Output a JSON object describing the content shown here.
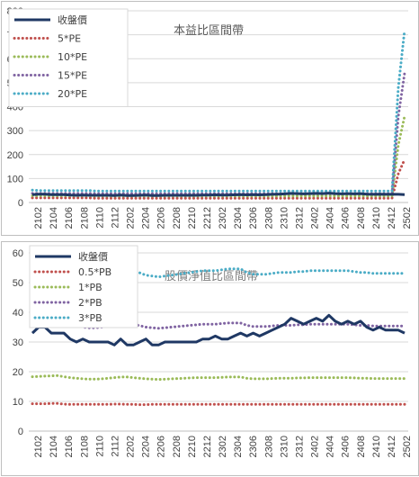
{
  "chart_data": [
    {
      "type": "line",
      "title": "本益比區間帶",
      "title_color": "#595959",
      "ylim": [
        0,
        800
      ],
      "yticks": [
        0,
        100,
        200,
        300,
        400,
        500,
        600,
        700,
        800
      ],
      "grid": true,
      "legend_position": "top-left",
      "x_tick_labels": [
        "2102",
        "2104",
        "2106",
        "2108",
        "2110",
        "2112",
        "2202",
        "2204",
        "2206",
        "2208",
        "2210",
        "2212",
        "2302",
        "2304",
        "2306",
        "2308",
        "2310",
        "2312",
        "2402",
        "2404",
        "2406",
        "2408",
        "2410",
        "2412",
        "2502"
      ],
      "series": [
        {
          "name": "收盤價",
          "color": "#1f3864",
          "style": "solid",
          "values": [
            33,
            35,
            35,
            33,
            33,
            33,
            31,
            30,
            31,
            30,
            30,
            30,
            30,
            29,
            31,
            29,
            29,
            30,
            31,
            29,
            29,
            30,
            30,
            30,
            30,
            30,
            30,
            31,
            31,
            32,
            31,
            31,
            32,
            33,
            32,
            33,
            32,
            33,
            34,
            35,
            36,
            38,
            37,
            36,
            37,
            38,
            37,
            39,
            37,
            36,
            37,
            36,
            37,
            35,
            34,
            35,
            34,
            34,
            34,
            33
          ]
        },
        {
          "name": "5*PE",
          "color": "#c0504d",
          "style": "dotted",
          "values": [
            19,
            19,
            19,
            19,
            19,
            19,
            19,
            19,
            19,
            19,
            18,
            18,
            18,
            18,
            18,
            18,
            18,
            18,
            18,
            18,
            18,
            18,
            18,
            18,
            18,
            18,
            18,
            18,
            18,
            18,
            18,
            18,
            18,
            18,
            18,
            18,
            18,
            18,
            18,
            18,
            18,
            18,
            18,
            18,
            18,
            18,
            18,
            18,
            18,
            18,
            18,
            18,
            18,
            18,
            18,
            18,
            18,
            18,
            120,
            180
          ]
        },
        {
          "name": "10*PE",
          "color": "#9bbb59",
          "style": "dotted",
          "values": [
            28,
            28,
            28,
            28,
            28,
            28,
            28,
            28,
            28,
            28,
            27,
            27,
            27,
            27,
            27,
            27,
            27,
            27,
            27,
            27,
            27,
            27,
            27,
            27,
            27,
            27,
            27,
            27,
            27,
            27,
            27,
            27,
            27,
            27,
            27,
            27,
            27,
            27,
            27,
            27,
            27,
            27,
            27,
            27,
            27,
            27,
            27,
            27,
            27,
            27,
            27,
            27,
            27,
            27,
            27,
            27,
            27,
            27,
            240,
            360
          ]
        },
        {
          "name": "15*PE",
          "color": "#8064a2",
          "style": "dotted",
          "values": [
            38,
            38,
            38,
            38,
            38,
            38,
            38,
            38,
            38,
            38,
            37,
            37,
            37,
            37,
            37,
            37,
            37,
            37,
            37,
            37,
            37,
            37,
            37,
            37,
            37,
            37,
            37,
            37,
            37,
            37,
            37,
            37,
            37,
            37,
            37,
            37,
            37,
            37,
            37,
            37,
            37,
            37,
            37,
            37,
            37,
            37,
            37,
            37,
            37,
            37,
            37,
            37,
            37,
            37,
            37,
            37,
            37,
            37,
            360,
            540
          ]
        },
        {
          "name": "20*PE",
          "color": "#4bacc6",
          "style": "dotted",
          "values": [
            52,
            50,
            50,
            50,
            50,
            50,
            50,
            50,
            50,
            50,
            48,
            48,
            48,
            48,
            48,
            48,
            48,
            48,
            48,
            48,
            48,
            48,
            48,
            48,
            48,
            48,
            48,
            48,
            48,
            48,
            48,
            48,
            48,
            48,
            48,
            48,
            48,
            48,
            48,
            48,
            48,
            48,
            48,
            48,
            48,
            48,
            48,
            48,
            48,
            48,
            48,
            48,
            48,
            48,
            48,
            48,
            48,
            48,
            480,
            720
          ]
        }
      ]
    },
    {
      "type": "line",
      "title": "股價淨值比區間帶",
      "title_color": "#7f7f7f",
      "ylim": [
        0,
        60
      ],
      "yticks": [
        0,
        10,
        20,
        30,
        40,
        50,
        60
      ],
      "grid": true,
      "legend_position": "top-left",
      "x_tick_labels": [
        "2102",
        "2104",
        "2106",
        "2108",
        "2110",
        "2112",
        "2202",
        "2204",
        "2206",
        "2208",
        "2210",
        "2212",
        "2302",
        "2304",
        "2306",
        "2308",
        "2310",
        "2312",
        "2402",
        "2404",
        "2406",
        "2408",
        "2410",
        "2412",
        "2502"
      ],
      "series": [
        {
          "name": "收盤價",
          "color": "#1f3864",
          "style": "solid",
          "values": [
            33,
            35,
            35,
            33,
            33,
            33,
            31,
            30,
            31,
            30,
            30,
            30,
            30,
            29,
            31,
            29,
            29,
            30,
            31,
            29,
            29,
            30,
            30,
            30,
            30,
            30,
            30,
            31,
            31,
            32,
            31,
            31,
            32,
            33,
            32,
            33,
            32,
            33,
            34,
            35,
            36,
            38,
            37,
            36,
            37,
            38,
            37,
            39,
            37,
            36,
            37,
            36,
            37,
            35,
            34,
            35,
            34,
            34,
            34,
            33
          ]
        },
        {
          "name": "0.5*PB",
          "color": "#c0504d",
          "style": "dotted",
          "values": [
            9.2,
            9.2,
            9.2,
            9.3,
            9.3,
            9.1,
            9,
            9,
            9,
            9,
            9,
            9,
            9,
            9.1,
            9.1,
            9,
            9,
            8.9,
            8.9,
            9,
            9,
            9,
            9,
            9,
            9,
            9,
            9,
            9,
            9,
            9,
            9,
            9,
            9,
            9,
            9,
            9,
            9,
            9,
            9,
            9,
            9,
            9,
            9,
            9,
            9,
            9,
            9,
            9,
            9,
            9,
            9,
            9,
            9,
            9,
            9,
            9,
            9,
            9,
            9,
            9
          ]
        },
        {
          "name": "1*PB",
          "color": "#9bbb59",
          "style": "dotted",
          "values": [
            18.3,
            18.4,
            18.5,
            18.6,
            18.7,
            18.3,
            18,
            17.8,
            17.6,
            17.5,
            17.5,
            17.6,
            17.8,
            18,
            18.2,
            18.2,
            18,
            17.8,
            17.6,
            17.5,
            17.4,
            17.5,
            17.6,
            17.7,
            17.8,
            17.9,
            18,
            18,
            18,
            18,
            18.1,
            18.2,
            18.2,
            18.2,
            17.8,
            17.6,
            17.6,
            17.6,
            17.7,
            17.8,
            17.8,
            17.8,
            17.9,
            17.9,
            18,
            18,
            18,
            18,
            18,
            18,
            18,
            17.9,
            17.8,
            17.8,
            17.7,
            17.7,
            17.7,
            17.7,
            17.7,
            17.7
          ]
        },
        {
          "name": "2*PB",
          "color": "#8064a2",
          "style": "dotted",
          "values": [
            36.5,
            36.8,
            37,
            37.2,
            37.3,
            36.6,
            36,
            35.5,
            35,
            34.8,
            34.8,
            35,
            35.5,
            36,
            36.4,
            36.5,
            36,
            35.5,
            35,
            34.8,
            34.6,
            34.8,
            35,
            35.2,
            35.4,
            35.6,
            35.8,
            36,
            36,
            36,
            36.2,
            36.4,
            36.4,
            36.4,
            35.6,
            35.2,
            35.2,
            35.2,
            35.4,
            35.6,
            35.6,
            35.6,
            35.8,
            35.8,
            36,
            36,
            36,
            36,
            36,
            36,
            36,
            35.8,
            35.6,
            35.6,
            35.4,
            35.4,
            35.4,
            35.4,
            35.4,
            35.4
          ]
        },
        {
          "name": "3*PB",
          "color": "#4bacc6",
          "style": "dotted",
          "values": [
            55,
            55.2,
            55.5,
            55.8,
            56,
            55,
            54,
            53.3,
            52.5,
            52.2,
            52.2,
            52.5,
            53.3,
            54,
            54.6,
            54.8,
            54,
            53.3,
            52.5,
            52.2,
            51.9,
            52.2,
            52.5,
            52.8,
            53.1,
            53.4,
            53.7,
            54,
            54,
            54,
            54.3,
            54.6,
            54.6,
            54.6,
            53.4,
            52.8,
            52.8,
            52.8,
            53.1,
            53.4,
            53.4,
            53.4,
            53.7,
            53.7,
            54,
            54,
            54,
            54,
            54,
            54,
            54,
            53.7,
            53.4,
            53.4,
            53.1,
            53.1,
            53.1,
            53.1,
            53.1,
            53.1
          ]
        }
      ]
    }
  ]
}
